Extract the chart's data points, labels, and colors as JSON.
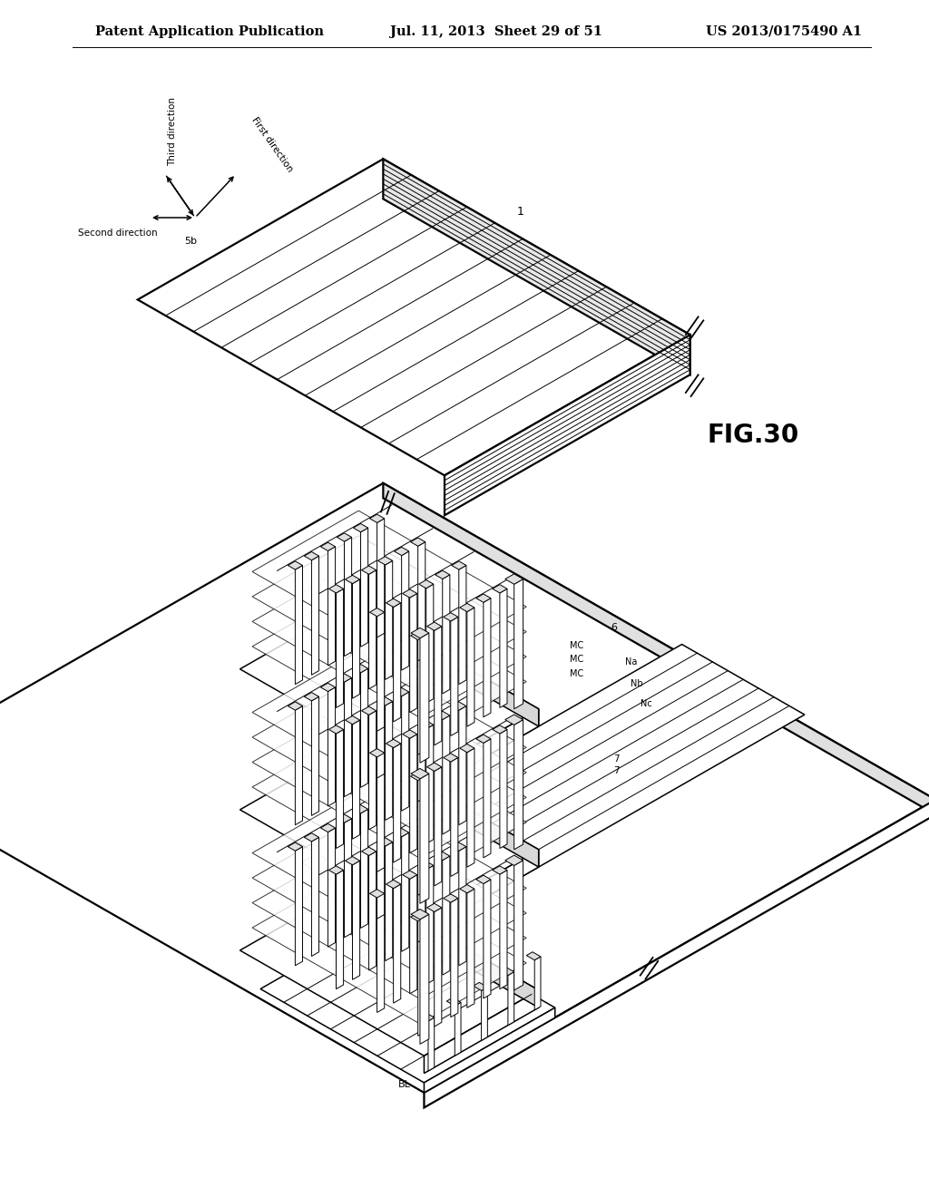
{
  "background_color": "#ffffff",
  "header_left": "Patent Application Publication",
  "header_center": "Jul. 11, 2013  Sheet 29 of 51",
  "header_right": "US 2013/0175490 A1",
  "fig_label": "FIG.30",
  "header_fontsize": 10.5,
  "fig_label_fontsize": 20,
  "page_width": 10.24,
  "page_height": 13.2
}
